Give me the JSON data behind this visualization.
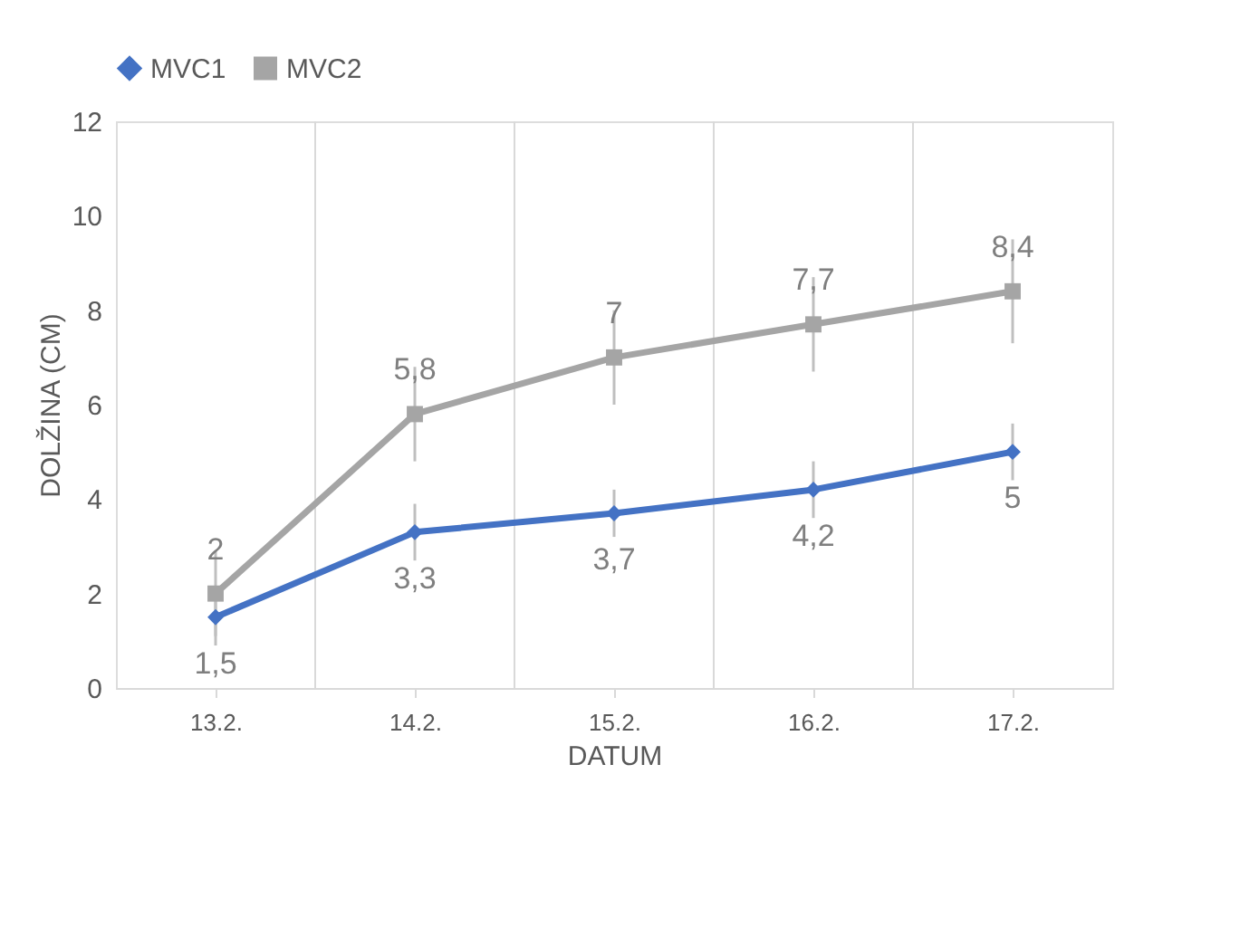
{
  "chart_data": {
    "type": "line",
    "xlabel": "DATUM",
    "ylabel": "DOLŽINA (CM)",
    "categories": [
      "13.2.",
      "14.2.",
      "15.2.",
      "16.2.",
      "17.2."
    ],
    "series": [
      {
        "name": "MVC1",
        "color": "#4472c4",
        "marker": "diamond",
        "values": [
          1.5,
          3.3,
          3.7,
          4.2,
          5
        ],
        "errors": [
          0.6,
          0.6,
          0.5,
          0.6,
          0.6
        ],
        "value_labels": [
          "1,5",
          "3,3",
          "3,7",
          "4,2",
          "5"
        ]
      },
      {
        "name": "MVC2",
        "color": "#a5a5a5",
        "marker": "square",
        "values": [
          2,
          5.8,
          7,
          7.7,
          8.4
        ],
        "errors": [
          0.9,
          1,
          1,
          1,
          1.1
        ],
        "value_labels": [
          "2",
          "5,8",
          "7",
          "7,7",
          "8,4"
        ]
      }
    ],
    "ylim": [
      0,
      12
    ],
    "yticks": [
      0,
      2,
      4,
      6,
      8,
      10,
      12
    ],
    "grid": "x",
    "legend": "top"
  }
}
